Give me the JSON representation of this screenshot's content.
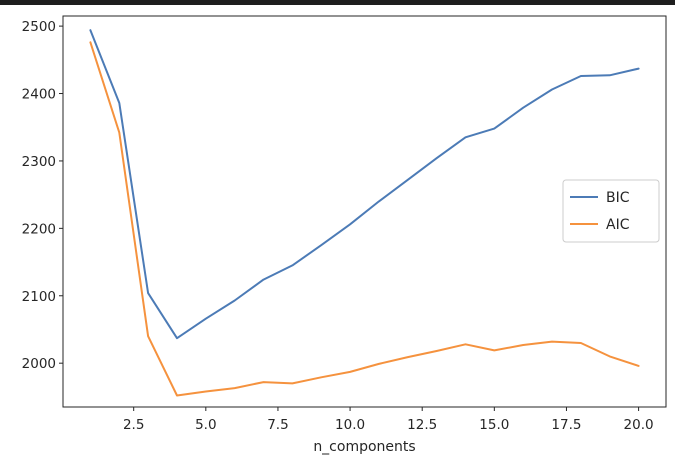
{
  "chart_data": {
    "type": "line",
    "title": "",
    "xlabel": "n_components",
    "ylabel": "",
    "xlim": [
      0.05,
      20.95
    ],
    "ylim": [
      1935,
      2515
    ],
    "xticks": [
      2.5,
      5.0,
      7.5,
      10.0,
      12.5,
      15.0,
      17.5,
      20.0
    ],
    "xtick_labels": [
      "2.5",
      "5.0",
      "7.5",
      "10.0",
      "12.5",
      "15.0",
      "17.5",
      "20.0"
    ],
    "yticks": [
      2000,
      2100,
      2200,
      2300,
      2400,
      2500
    ],
    "ytick_labels": [
      "2000",
      "2100",
      "2200",
      "2300",
      "2400",
      "2500"
    ],
    "grid": false,
    "legend_position": "center-right",
    "x": [
      1,
      2,
      3,
      4,
      5,
      6,
      7,
      8,
      9,
      10,
      11,
      12,
      13,
      14,
      15,
      16,
      17,
      18,
      19,
      20
    ],
    "series": [
      {
        "name": "BIC",
        "color": "#4c7bb6",
        "values": [
          2494,
          2386,
          2104,
          2037,
          2066,
          2093,
          2124,
          2145,
          2175,
          2206,
          2240,
          2272,
          2304,
          2335,
          2348,
          2379,
          2406,
          2426,
          2427,
          2437
        ]
      },
      {
        "name": "AIC",
        "color": "#f5923e",
        "values": [
          2476,
          2342,
          2040,
          1952,
          1958,
          1963,
          1972,
          1970,
          1979,
          1987,
          1999,
          2009,
          2018,
          2028,
          2019,
          2027,
          2032,
          2030,
          2010,
          1996
        ]
      }
    ]
  }
}
